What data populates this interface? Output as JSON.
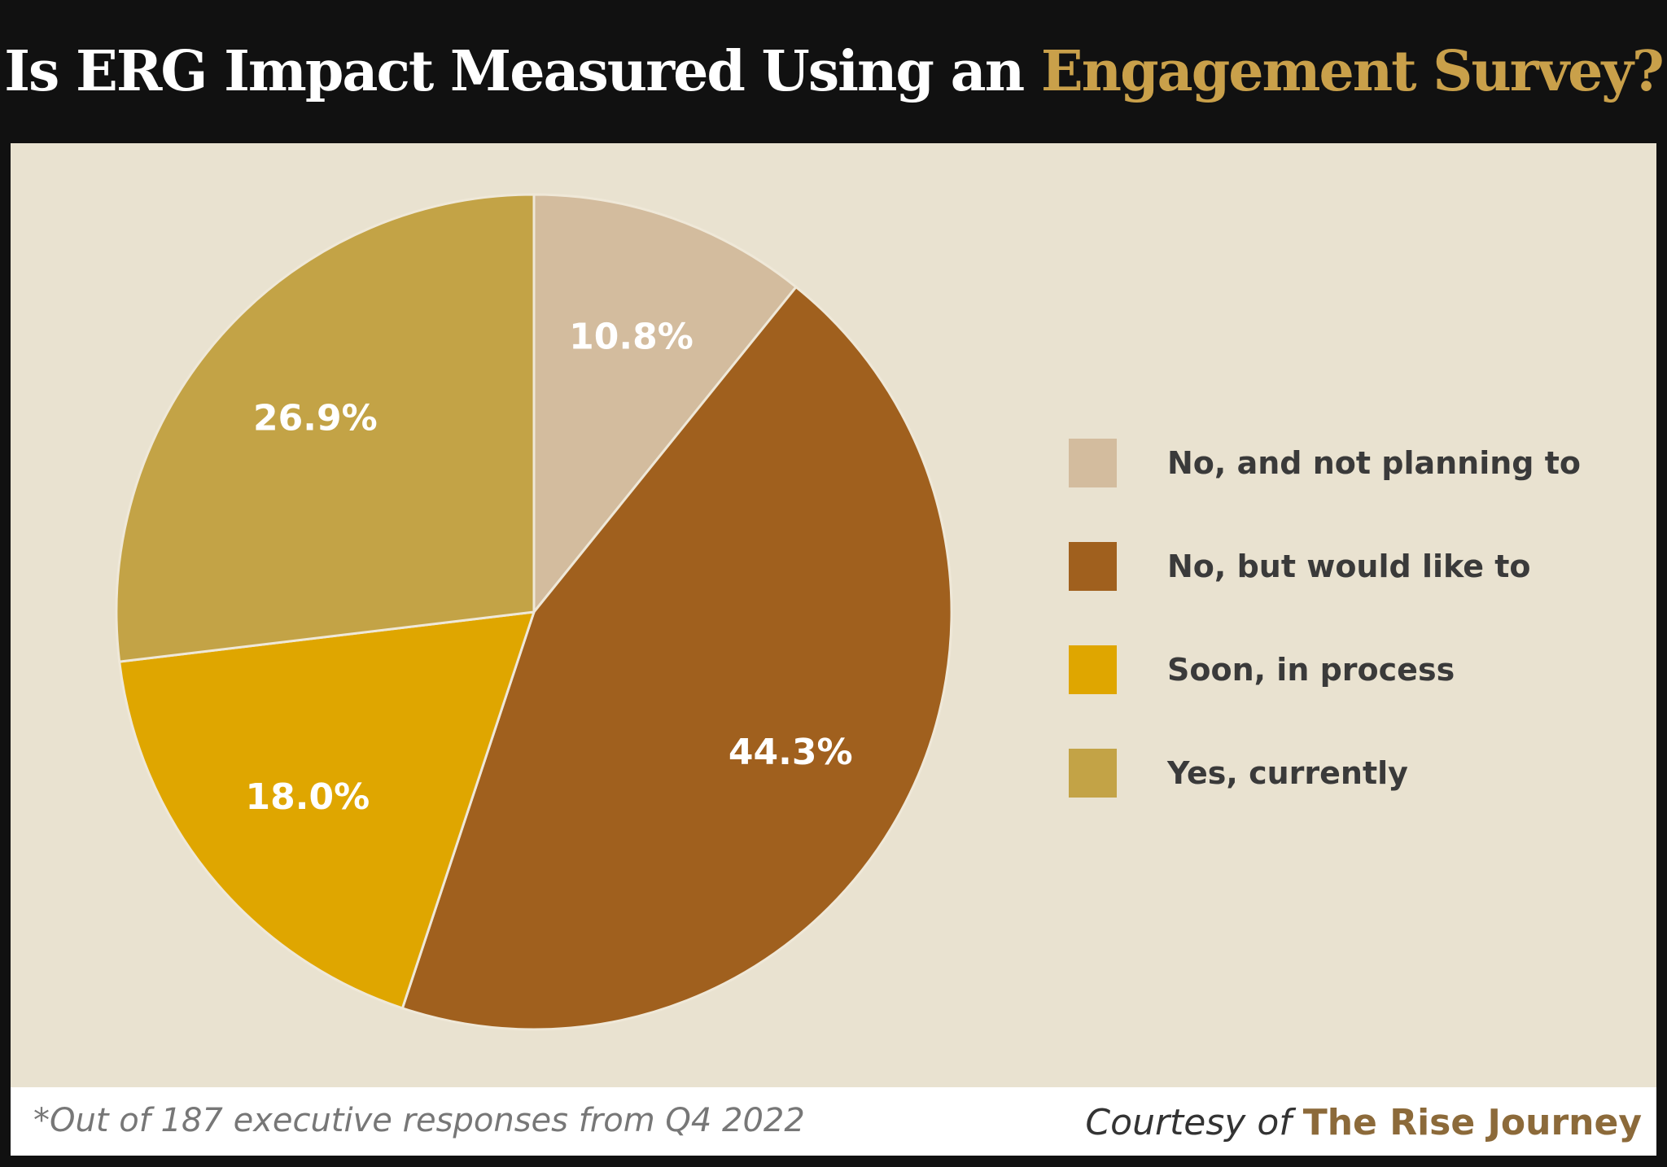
{
  "title": {
    "main": "Is ERG Impact Measured Using an ",
    "highlight": "Engagement Survey?"
  },
  "footer": {
    "note": "*Out of 187 executive responses from Q4 2022",
    "credit_prefix": "Courtesy of ",
    "credit_name": "The Rise Journey"
  },
  "chart_data": {
    "type": "pie",
    "title": "Is ERG Impact Measured Using an Engagement Survey?",
    "categories": [
      "No, and not planning to",
      "No, but would like to",
      "Soon, in process",
      "Yes, currently"
    ],
    "values": [
      10.8,
      44.3,
      18.0,
      26.9
    ],
    "labels": [
      "10.8%",
      "44.3%",
      "18.0%",
      "26.9%"
    ],
    "colors": [
      "#D3BC9E",
      "#A0601E",
      "#DFA600",
      "#C3A346"
    ],
    "start": "top",
    "direction": "clockwise",
    "legend_position": "right"
  }
}
